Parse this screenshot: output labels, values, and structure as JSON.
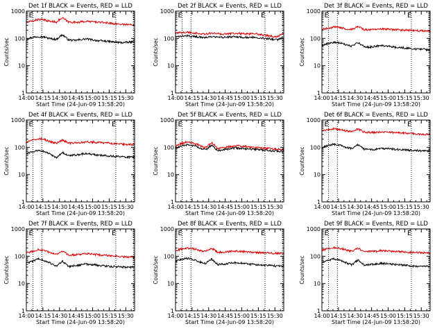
{
  "figure": {
    "background": "#ffffff",
    "axis_color": "#000000",
    "event_color": "#000000",
    "lld_color": "#e00000",
    "marker_color": "#555555"
  },
  "chart_data": [
    {
      "type": "line",
      "title": "Det 1f BLACK = Events, RED = LLD",
      "xlabel": "Start Time (24-Jun-09 13:58:20)",
      "ylabel": "Counts/sec",
      "yscale": "log",
      "ylim": [
        1,
        1000
      ],
      "yticks": [
        "1",
        "10",
        "100",
        "1000"
      ],
      "xlim": [
        "14:00",
        "15:38"
      ],
      "xticks": [
        "14:00",
        "14:15",
        "14:30",
        "14:45",
        "15:00",
        "15:15",
        "15:30"
      ],
      "markers": [
        {
          "label": "E",
          "time": "14:06",
          "line": "dotted"
        },
        {
          "label": "",
          "time": "14:14",
          "line": "dotted"
        },
        {
          "label": "E",
          "time": "15:21",
          "line": "dotted"
        },
        {
          "label": "",
          "time": "15:37",
          "line": "dotted"
        }
      ],
      "series": [
        {
          "name": "Events",
          "color": "black",
          "values": [
            95,
            108,
            118,
            112,
            98,
            92,
            135,
            88,
            84,
            90,
            96,
            88,
            82,
            80,
            76,
            72,
            70,
            72,
            75
          ]
        },
        {
          "name": "LLD",
          "color": "red",
          "values": [
            380,
            430,
            500,
            470,
            420,
            400,
            560,
            400,
            390,
            400,
            420,
            410,
            390,
            380,
            360,
            340,
            330,
            320,
            310
          ]
        }
      ]
    },
    {
      "type": "line",
      "title": "Det 2f BLACK = Events, RED = LLD",
      "xlabel": "Start Time (24-Jun-09 13:58:20)",
      "ylabel": "Counts/sec",
      "yscale": "log",
      "ylim": [
        1,
        1000
      ],
      "yticks": [
        "1",
        "10",
        "100",
        "1000"
      ],
      "xlim": [
        "14:00",
        "15:38"
      ],
      "xticks": [
        "14:00",
        "14:15",
        "14:30",
        "14:45",
        "15:00",
        "15:15",
        "15:30"
      ],
      "markers": [
        {
          "label": "E",
          "time": "14:06",
          "line": "dotted"
        },
        {
          "label": "",
          "time": "14:14",
          "line": "dotted"
        },
        {
          "label": "E",
          "time": "15:21",
          "line": "dotted"
        },
        {
          "label": "",
          "time": "15:37",
          "line": "dotted"
        }
      ],
      "series": [
        {
          "name": "Events",
          "color": "black",
          "values": [
            110,
            120,
            125,
            118,
            112,
            108,
            115,
            110,
            108,
            112,
            115,
            110,
            108,
            110,
            106,
            100,
            95,
            90,
            110
          ]
        },
        {
          "name": "LLD",
          "color": "red",
          "values": [
            150,
            165,
            170,
            160,
            150,
            145,
            155,
            150,
            145,
            150,
            155,
            150,
            145,
            148,
            140,
            130,
            120,
            115,
            160
          ]
        }
      ]
    },
    {
      "type": "line",
      "title": "Det 3f BLACK = Events, RED = LLD",
      "xlabel": "Start Time (24-Jun-09 13:58:20)",
      "ylabel": "Counts/sec",
      "yscale": "log",
      "ylim": [
        1,
        1000
      ],
      "yticks": [
        "1",
        "10",
        "100",
        "1000"
      ],
      "xlim": [
        "14:00",
        "15:38"
      ],
      "xticks": [
        "14:00",
        "14:15",
        "14:30",
        "14:45",
        "15:00",
        "15:15",
        "15:30"
      ],
      "markers": [
        {
          "label": "E",
          "time": "14:06",
          "line": "dotted"
        },
        {
          "label": "",
          "time": "14:14",
          "line": "dotted"
        },
        {
          "label": "E",
          "time": "15:21",
          "line": "dotted"
        },
        {
          "label": "",
          "time": "15:37",
          "line": "dotted"
        }
      ],
      "series": [
        {
          "name": "Events",
          "color": "black",
          "values": [
            55,
            65,
            72,
            68,
            58,
            52,
            70,
            50,
            48,
            52,
            55,
            52,
            48,
            46,
            44,
            42,
            40,
            40,
            38
          ]
        },
        {
          "name": "LLD",
          "color": "red",
          "values": [
            210,
            240,
            260,
            250,
            225,
            215,
            270,
            210,
            205,
            210,
            220,
            215,
            210,
            205,
            200,
            195,
            190,
            190,
            185
          ]
        }
      ]
    },
    {
      "type": "line",
      "title": "Det 4f BLACK = Events, RED = LLD",
      "xlabel": "Start Time (24-Jun-09 13:58:20)",
      "ylabel": "Counts/sec",
      "yscale": "log",
      "ylim": [
        1,
        1000
      ],
      "yticks": [
        "1",
        "10",
        "100",
        "1000"
      ],
      "xlim": [
        "14:00",
        "15:38"
      ],
      "xticks": [
        "14:00",
        "14:15",
        "14:30",
        "14:45",
        "15:00",
        "15:15",
        "15:30"
      ],
      "markers": [
        {
          "label": "E",
          "time": "14:06",
          "line": "dotted"
        },
        {
          "label": "",
          "time": "14:14",
          "line": "dotted"
        },
        {
          "label": "E",
          "time": "15:21",
          "line": "dotted"
        },
        {
          "label": "",
          "time": "15:37",
          "line": "dotted"
        }
      ],
      "series": [
        {
          "name": "Events",
          "color": "black",
          "values": [
            58,
            68,
            78,
            70,
            55,
            40,
            65,
            48,
            52,
            56,
            60,
            55,
            52,
            50,
            48,
            46,
            45,
            44,
            43
          ]
        },
        {
          "name": "LLD",
          "color": "red",
          "values": [
            150,
            180,
            210,
            195,
            160,
            140,
            185,
            140,
            145,
            150,
            160,
            155,
            150,
            145,
            140,
            135,
            130,
            128,
            125
          ]
        }
      ]
    },
    {
      "type": "line",
      "title": "Det 5f BLACK = Events, RED = LLD",
      "xlabel": "Start Time (24-Jun-09 13:58:20)",
      "ylabel": "Counts/sec",
      "yscale": "log",
      "ylim": [
        1,
        1000
      ],
      "yticks": [
        "1",
        "10",
        "100",
        "1000"
      ],
      "xlim": [
        "14:00",
        "15:38"
      ],
      "xticks": [
        "14:00",
        "14:15",
        "14:30",
        "14:45",
        "15:00",
        "15:15",
        "15:30"
      ],
      "markers": [
        {
          "label": "E",
          "time": "14:06",
          "line": "dotted"
        },
        {
          "label": "",
          "time": "14:14",
          "line": "dotted"
        },
        {
          "label": "E",
          "time": "15:21",
          "line": "dotted"
        },
        {
          "label": "",
          "time": "15:37",
          "line": "dotted"
        }
      ],
      "series": [
        {
          "name": "Events",
          "color": "black",
          "values": [
            90,
            110,
            125,
            115,
            95,
            80,
            120,
            75,
            82,
            88,
            95,
            92,
            88,
            85,
            82,
            78,
            75,
            72,
            70
          ]
        },
        {
          "name": "LLD",
          "color": "red",
          "values": [
            110,
            140,
            160,
            145,
            115,
            95,
            150,
            90,
            98,
            105,
            115,
            112,
            105,
            100,
            96,
            92,
            88,
            86,
            84
          ]
        }
      ]
    },
    {
      "type": "line",
      "title": "Det 6f BLACK = Events, RED = LLD",
      "xlabel": "Start Time (24-Jun-09 13:58:20)",
      "ylabel": "Counts/sec",
      "yscale": "log",
      "ylim": [
        1,
        1000
      ],
      "yticks": [
        "1",
        "10",
        "100",
        "1000"
      ],
      "xlim": [
        "14:00",
        "15:38"
      ],
      "xticks": [
        "14:00",
        "14:15",
        "14:30",
        "14:45",
        "15:00",
        "15:15",
        "15:30"
      ],
      "markers": [
        {
          "label": "E",
          "time": "14:06",
          "line": "dotted"
        },
        {
          "label": "",
          "time": "14:14",
          "line": "dotted"
        },
        {
          "label": "E",
          "time": "15:21",
          "line": "dotted"
        },
        {
          "label": "",
          "time": "15:37",
          "line": "dotted"
        }
      ],
      "series": [
        {
          "name": "Events",
          "color": "black",
          "values": [
            100,
            115,
            130,
            120,
            100,
            90,
            125,
            85,
            82,
            85,
            90,
            88,
            85,
            82,
            80,
            78,
            76,
            74,
            72
          ]
        },
        {
          "name": "LLD",
          "color": "red",
          "values": [
            390,
            440,
            480,
            450,
            400,
            370,
            470,
            360,
            350,
            355,
            370,
            365,
            350,
            340,
            330,
            320,
            310,
            300,
            290
          ]
        }
      ]
    },
    {
      "type": "line",
      "title": "Det 7f BLACK = Events, RED = LLD",
      "xlabel": "Start Time (24-Jun-09 13:58:20)",
      "ylabel": "Counts/sec",
      "yscale": "log",
      "ylim": [
        1,
        1000
      ],
      "yticks": [
        "1",
        "10",
        "100",
        "1000"
      ],
      "xlim": [
        "14:00",
        "15:38"
      ],
      "xticks": [
        "14:00",
        "14:15",
        "14:30",
        "14:45",
        "15:00",
        "15:15",
        "15:30"
      ],
      "markers": [
        {
          "label": "E",
          "time": "14:06",
          "line": "dotted"
        },
        {
          "label": "",
          "time": "14:14",
          "line": "dotted"
        },
        {
          "label": "E",
          "time": "15:21",
          "line": "dotted"
        },
        {
          "label": "",
          "time": "15:37",
          "line": "dotted"
        }
      ],
      "series": [
        {
          "name": "Events",
          "color": "black",
          "values": [
            55,
            65,
            80,
            70,
            55,
            42,
            65,
            42,
            45,
            48,
            52,
            50,
            46,
            44,
            42,
            42,
            40,
            40,
            40
          ]
        },
        {
          "name": "LLD",
          "color": "red",
          "values": [
            130,
            150,
            175,
            160,
            130,
            115,
            150,
            110,
            112,
            118,
            125,
            120,
            112,
            108,
            104,
            100,
            96,
            94,
            92
          ]
        }
      ]
    },
    {
      "type": "line",
      "title": "Det 8f BLACK = Events, RED = LLD",
      "xlabel": "Start Time (24-Jun-09 13:58:20)",
      "ylabel": "Counts/sec",
      "yscale": "log",
      "ylim": [
        1,
        1000
      ],
      "yticks": [
        "1",
        "10",
        "100",
        "1000"
      ],
      "xlim": [
        "14:00",
        "15:38"
      ],
      "xticks": [
        "14:00",
        "14:15",
        "14:30",
        "14:45",
        "15:00",
        "15:15",
        "15:30"
      ],
      "markers": [
        {
          "label": "E",
          "time": "14:06",
          "line": "dotted"
        },
        {
          "label": "",
          "time": "14:14",
          "line": "dotted"
        },
        {
          "label": "E",
          "time": "15:21",
          "line": "dotted"
        },
        {
          "label": "",
          "time": "15:37",
          "line": "dotted"
        }
      ],
      "series": [
        {
          "name": "Events",
          "color": "black",
          "values": [
            65,
            78,
            85,
            75,
            62,
            55,
            78,
            50,
            52,
            55,
            58,
            56,
            52,
            50,
            48,
            46,
            45,
            44,
            44
          ]
        },
        {
          "name": "LLD",
          "color": "red",
          "values": [
            160,
            185,
            200,
            190,
            165,
            150,
            195,
            140,
            142,
            148,
            155,
            150,
            145,
            140,
            135,
            132,
            130,
            128,
            126
          ]
        }
      ]
    },
    {
      "type": "line",
      "title": "Det 9f BLACK = Events, RED = LLD",
      "xlabel": "Start Time (24-Jun-09 13:58:20)",
      "ylabel": "Counts/sec",
      "yscale": "log",
      "ylim": [
        1,
        1000
      ],
      "yticks": [
        "1",
        "10",
        "100",
        "1000"
      ],
      "xlim": [
        "14:00",
        "15:38"
      ],
      "xticks": [
        "14:00",
        "14:15",
        "14:30",
        "14:45",
        "15:00",
        "15:15",
        "15:30"
      ],
      "markers": [
        {
          "label": "E",
          "time": "14:06",
          "line": "dotted"
        },
        {
          "label": "",
          "time": "14:14",
          "line": "dotted"
        },
        {
          "label": "E",
          "time": "15:21",
          "line": "dotted"
        },
        {
          "label": "",
          "time": "15:37",
          "line": "dotted"
        }
      ],
      "series": [
        {
          "name": "Events",
          "color": "black",
          "values": [
            58,
            70,
            80,
            72,
            58,
            48,
            72,
            48,
            50,
            52,
            55,
            54,
            50,
            48,
            46,
            44,
            42,
            42,
            42
          ]
        },
        {
          "name": "LLD",
          "color": "red",
          "values": [
            165,
            190,
            210,
            195,
            170,
            150,
            200,
            145,
            148,
            152,
            160,
            156,
            150,
            146,
            142,
            138,
            136,
            134,
            132
          ]
        }
      ]
    }
  ]
}
